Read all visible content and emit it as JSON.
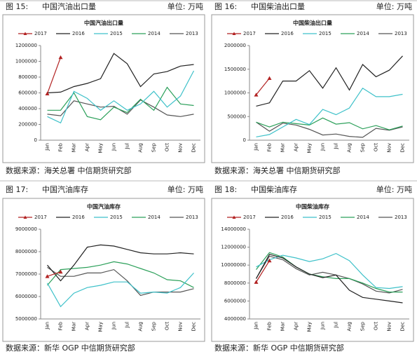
{
  "figures": [
    {
      "label": "图 15:",
      "caption": "中国汽油出口量",
      "unit": "单位: 万吨",
      "source": "数据来源：海关总署  中信期货研究部"
    },
    {
      "label": "图 16:",
      "caption": "中国柴油出口量",
      "unit": "单位: 万吨",
      "source": "数据来源：海关总署  中信期货研究部"
    },
    {
      "label": "图 17:",
      "caption": "中国汽油库存",
      "unit": "单位: 万吨",
      "source": "数据来源：新华 OGP  中信期货研究部"
    },
    {
      "label": "图 18:",
      "caption": "中国柴油库存",
      "unit": "单位: 万吨",
      "source": "数据来源：新华 OGP  中信期货研究部"
    }
  ],
  "chart_data": [
    {
      "type": "line",
      "title": "中国汽油出口量",
      "categories": [
        "Jan",
        "Feb",
        "Mar",
        "Apr",
        "May",
        "Jun",
        "Jul",
        "Aug",
        "Sep",
        "Oct",
        "Nov",
        "Dec"
      ],
      "ylim": [
        0,
        1200000
      ],
      "yticks": [
        0,
        200000,
        400000,
        600000,
        800000,
        1000000,
        1200000
      ],
      "grid": false,
      "series": [
        {
          "name": "2017",
          "color": "#b22222",
          "marker": "triangle",
          "values": [
            590000,
            1050000,
            null,
            null,
            null,
            null,
            null,
            null,
            null,
            null,
            null,
            null
          ]
        },
        {
          "name": "2016",
          "color": "#222222",
          "values": [
            600000,
            610000,
            680000,
            720000,
            780000,
            1100000,
            970000,
            680000,
            840000,
            870000,
            940000,
            960000
          ]
        },
        {
          "name": "2015",
          "color": "#3ec1c9",
          "values": [
            300000,
            220000,
            620000,
            530000,
            380000,
            500000,
            380000,
            460000,
            620000,
            420000,
            560000,
            880000
          ]
        },
        {
          "name": "2014",
          "color": "#2ca05a",
          "values": [
            380000,
            380000,
            600000,
            300000,
            260000,
            420000,
            350000,
            520000,
            380000,
            670000,
            460000,
            440000
          ]
        },
        {
          "name": "2013",
          "color": "#555555",
          "values": [
            330000,
            310000,
            500000,
            460000,
            420000,
            430000,
            330000,
            510000,
            420000,
            320000,
            300000,
            330000
          ]
        }
      ]
    },
    {
      "type": "line",
      "title": "中国柴油出口量",
      "categories": [
        "Jan",
        "Feb",
        "Mar",
        "Apr",
        "May",
        "Jun",
        "Jul",
        "Aug",
        "Sep",
        "Oct",
        "Nov",
        "Dec"
      ],
      "ylim": [
        0,
        2000000
      ],
      "yticks": [
        0,
        500000,
        1000000,
        1500000,
        2000000
      ],
      "grid": false,
      "series": [
        {
          "name": "2017",
          "color": "#b22222",
          "marker": "triangle",
          "values": [
            960000,
            1310000,
            null,
            null,
            null,
            null,
            null,
            null,
            null,
            null,
            null,
            null
          ]
        },
        {
          "name": "2016",
          "color": "#222222",
          "values": [
            720000,
            790000,
            1250000,
            1250000,
            1470000,
            1100000,
            1530000,
            1060000,
            1600000,
            1340000,
            1480000,
            1780000
          ]
        },
        {
          "name": "2015",
          "color": "#3ec1c9",
          "values": [
            70000,
            120000,
            280000,
            440000,
            330000,
            650000,
            540000,
            680000,
            1100000,
            920000,
            920000,
            970000
          ]
        },
        {
          "name": "2014",
          "color": "#2ca05a",
          "values": [
            380000,
            280000,
            380000,
            350000,
            320000,
            470000,
            340000,
            370000,
            240000,
            310000,
            220000,
            300000
          ]
        },
        {
          "name": "2013",
          "color": "#555555",
          "values": [
            380000,
            190000,
            360000,
            320000,
            230000,
            110000,
            130000,
            80000,
            60000,
            250000,
            210000,
            280000
          ]
        }
      ]
    },
    {
      "type": "line",
      "title": "中国汽油库存",
      "categories": [
        "Jan",
        "Feb",
        "Mar",
        "Apr",
        "May",
        "Jun",
        "Jul",
        "Aug",
        "Sep",
        "Oct",
        "Nov",
        "Dec"
      ],
      "ylim": [
        5000000,
        9000000
      ],
      "yticks": [
        5000000,
        6000000,
        7000000,
        8000000,
        9000000
      ],
      "grid": false,
      "series": [
        {
          "name": "2017",
          "color": "#b22222",
          "marker": "triangle",
          "values": [
            6900000,
            7100000,
            null,
            null,
            null,
            null,
            null,
            null,
            null,
            null,
            null,
            null
          ]
        },
        {
          "name": "2016",
          "color": "#222222",
          "values": [
            7400000,
            6700000,
            7400000,
            8200000,
            8300000,
            8250000,
            8100000,
            7950000,
            7900000,
            7900000,
            7950000,
            7900000
          ]
        },
        {
          "name": "2015",
          "color": "#3ec1c9",
          "values": [
            6600000,
            5550000,
            6150000,
            6400000,
            6500000,
            6650000,
            6650000,
            6150000,
            6200000,
            6150000,
            6400000,
            7050000
          ]
        },
        {
          "name": "2014",
          "color": "#2ca05a",
          "values": [
            6500000,
            7200000,
            7250000,
            7300000,
            7400000,
            7550000,
            7450000,
            7250000,
            7050000,
            6750000,
            6700000,
            6400000
          ]
        },
        {
          "name": "2013",
          "color": "#555555",
          "values": [
            7300000,
            6900000,
            6900000,
            7050000,
            7050000,
            7200000,
            6700000,
            6050000,
            6200000,
            6200000,
            6200000,
            6350000
          ]
        }
      ]
    },
    {
      "type": "line",
      "title": "中国柴油库存",
      "categories": [
        "Jan",
        "Feb",
        "Mar",
        "Apr",
        "May",
        "Jun",
        "Jul",
        "Aug",
        "Sep",
        "Oct",
        "Nov",
        "Dec"
      ],
      "ylim": [
        4000000,
        14000000
      ],
      "yticks": [
        4000000,
        6000000,
        8000000,
        10000000,
        12000000,
        14000000
      ],
      "grid": false,
      "series": [
        {
          "name": "2017",
          "color": "#b22222",
          "marker": "triangle",
          "values": [
            8100000,
            10500000,
            null,
            null,
            null,
            null,
            null,
            null,
            null,
            null,
            null,
            null
          ]
        },
        {
          "name": "2016",
          "color": "#222222",
          "values": [
            8500000,
            11200000,
            10800000,
            9800000,
            9000000,
            8600000,
            8900000,
            7200000,
            6400000,
            6200000,
            6000000,
            5800000
          ]
        },
        {
          "name": "2015",
          "color": "#3ec1c9",
          "values": [
            9800000,
            10600000,
            11100000,
            10800000,
            10400000,
            10700000,
            11300000,
            10500000,
            8900000,
            7500000,
            7400000,
            7600000
          ]
        },
        {
          "name": "2014",
          "color": "#2ca05a",
          "values": [
            9500000,
            11400000,
            10900000,
            9800000,
            9000000,
            8700000,
            8500000,
            8500000,
            8000000,
            7400000,
            7000000,
            7000000
          ]
        },
        {
          "name": "2013",
          "color": "#555555",
          "values": [
            8500000,
            11000000,
            10600000,
            9600000,
            8900000,
            9200000,
            8900000,
            8500000,
            7900000,
            7100000,
            6900000,
            7300000
          ]
        }
      ]
    }
  ]
}
